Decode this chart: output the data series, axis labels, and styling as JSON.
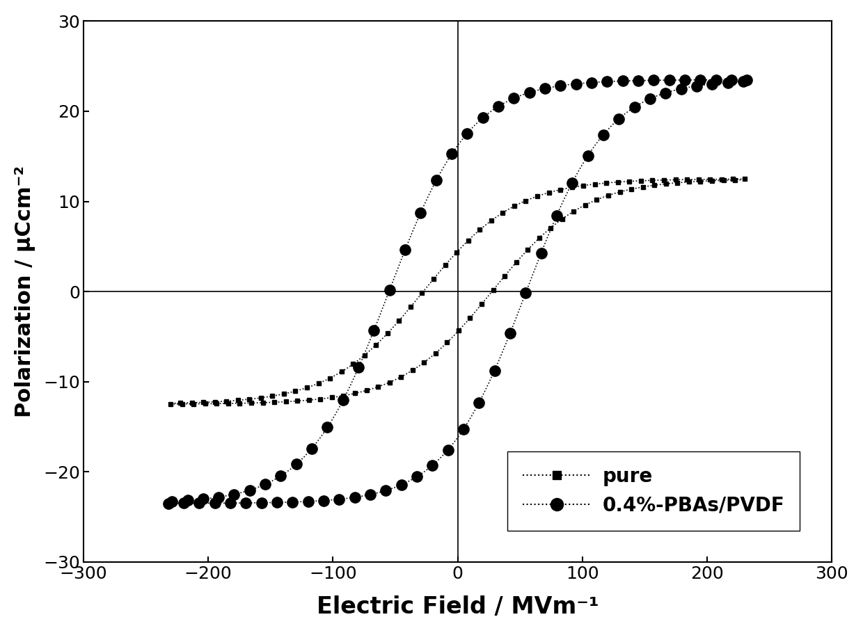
{
  "title": "",
  "xlabel": "Electric Field / MVm⁻¹",
  "ylabel": "Polarization / μCcm⁻²",
  "xlim": [
    -300,
    300
  ],
  "ylim": [
    -30,
    30
  ],
  "xticks": [
    -300,
    -200,
    -100,
    0,
    100,
    200,
    300
  ],
  "yticks": [
    -30,
    -20,
    -10,
    0,
    10,
    20,
    30
  ],
  "background_color": "#ffffff",
  "line_color": "#000000",
  "legend_labels": [
    "pure",
    "0.4%-PBAs/PVDF"
  ],
  "pure_E_max": 230,
  "pure_P_max": 12.5,
  "pure_E_coer": 50,
  "pure_P_rem": 6,
  "pbas_E_max": 232,
  "pbas_P_max": 23.5,
  "pbas_E_coer": 100,
  "pbas_P_rem": 14
}
